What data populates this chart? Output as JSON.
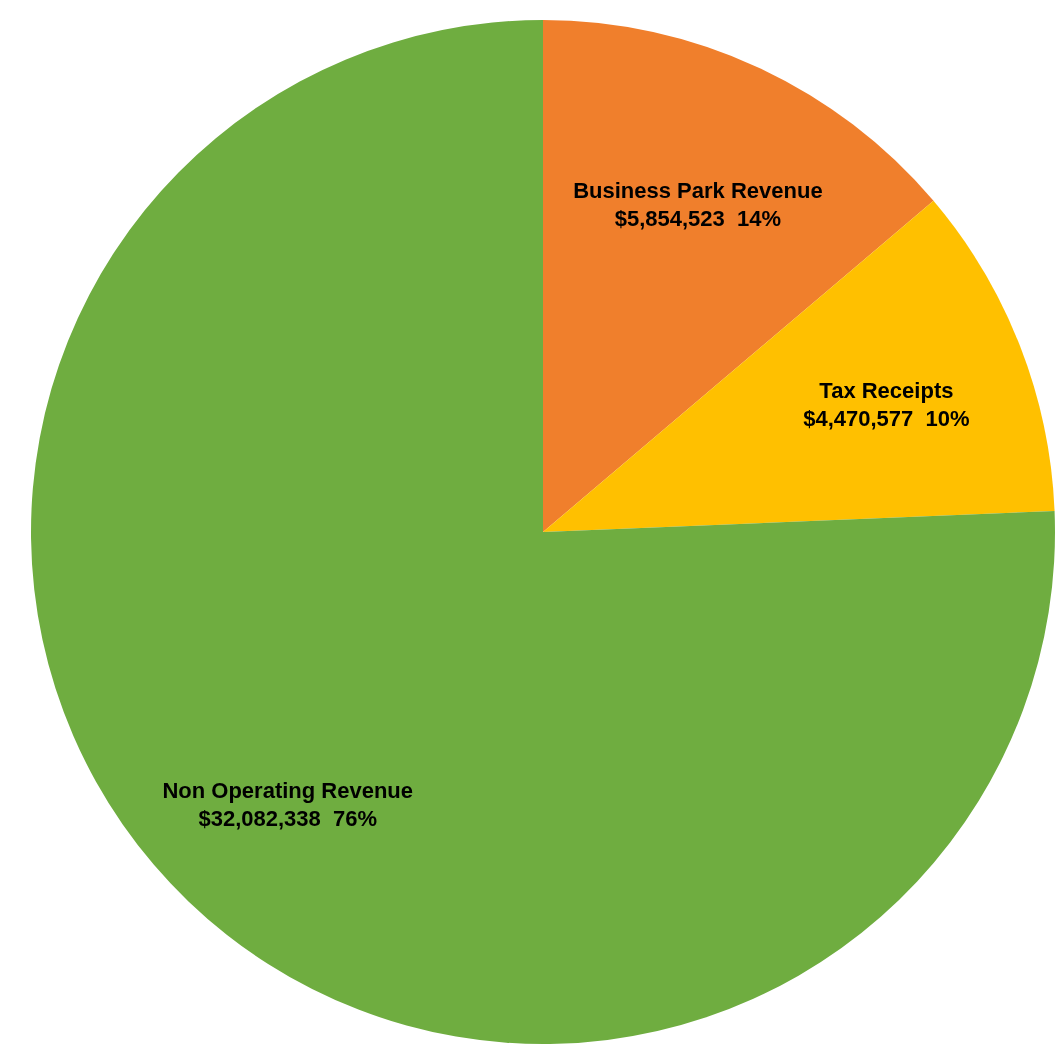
{
  "chart_data": {
    "type": "pie",
    "categories": [
      "Business Park Revenue",
      "Tax Receipts",
      "Non Operating Revenue"
    ],
    "values": [
      5854523,
      4470577,
      32082338
    ],
    "colors": [
      "#f07f2c",
      "#ffc000",
      "#6fad40"
    ],
    "value_labels": [
      "$5,854,523  14%",
      "$4,470,577  10%",
      "$32,082,338  76%"
    ]
  }
}
